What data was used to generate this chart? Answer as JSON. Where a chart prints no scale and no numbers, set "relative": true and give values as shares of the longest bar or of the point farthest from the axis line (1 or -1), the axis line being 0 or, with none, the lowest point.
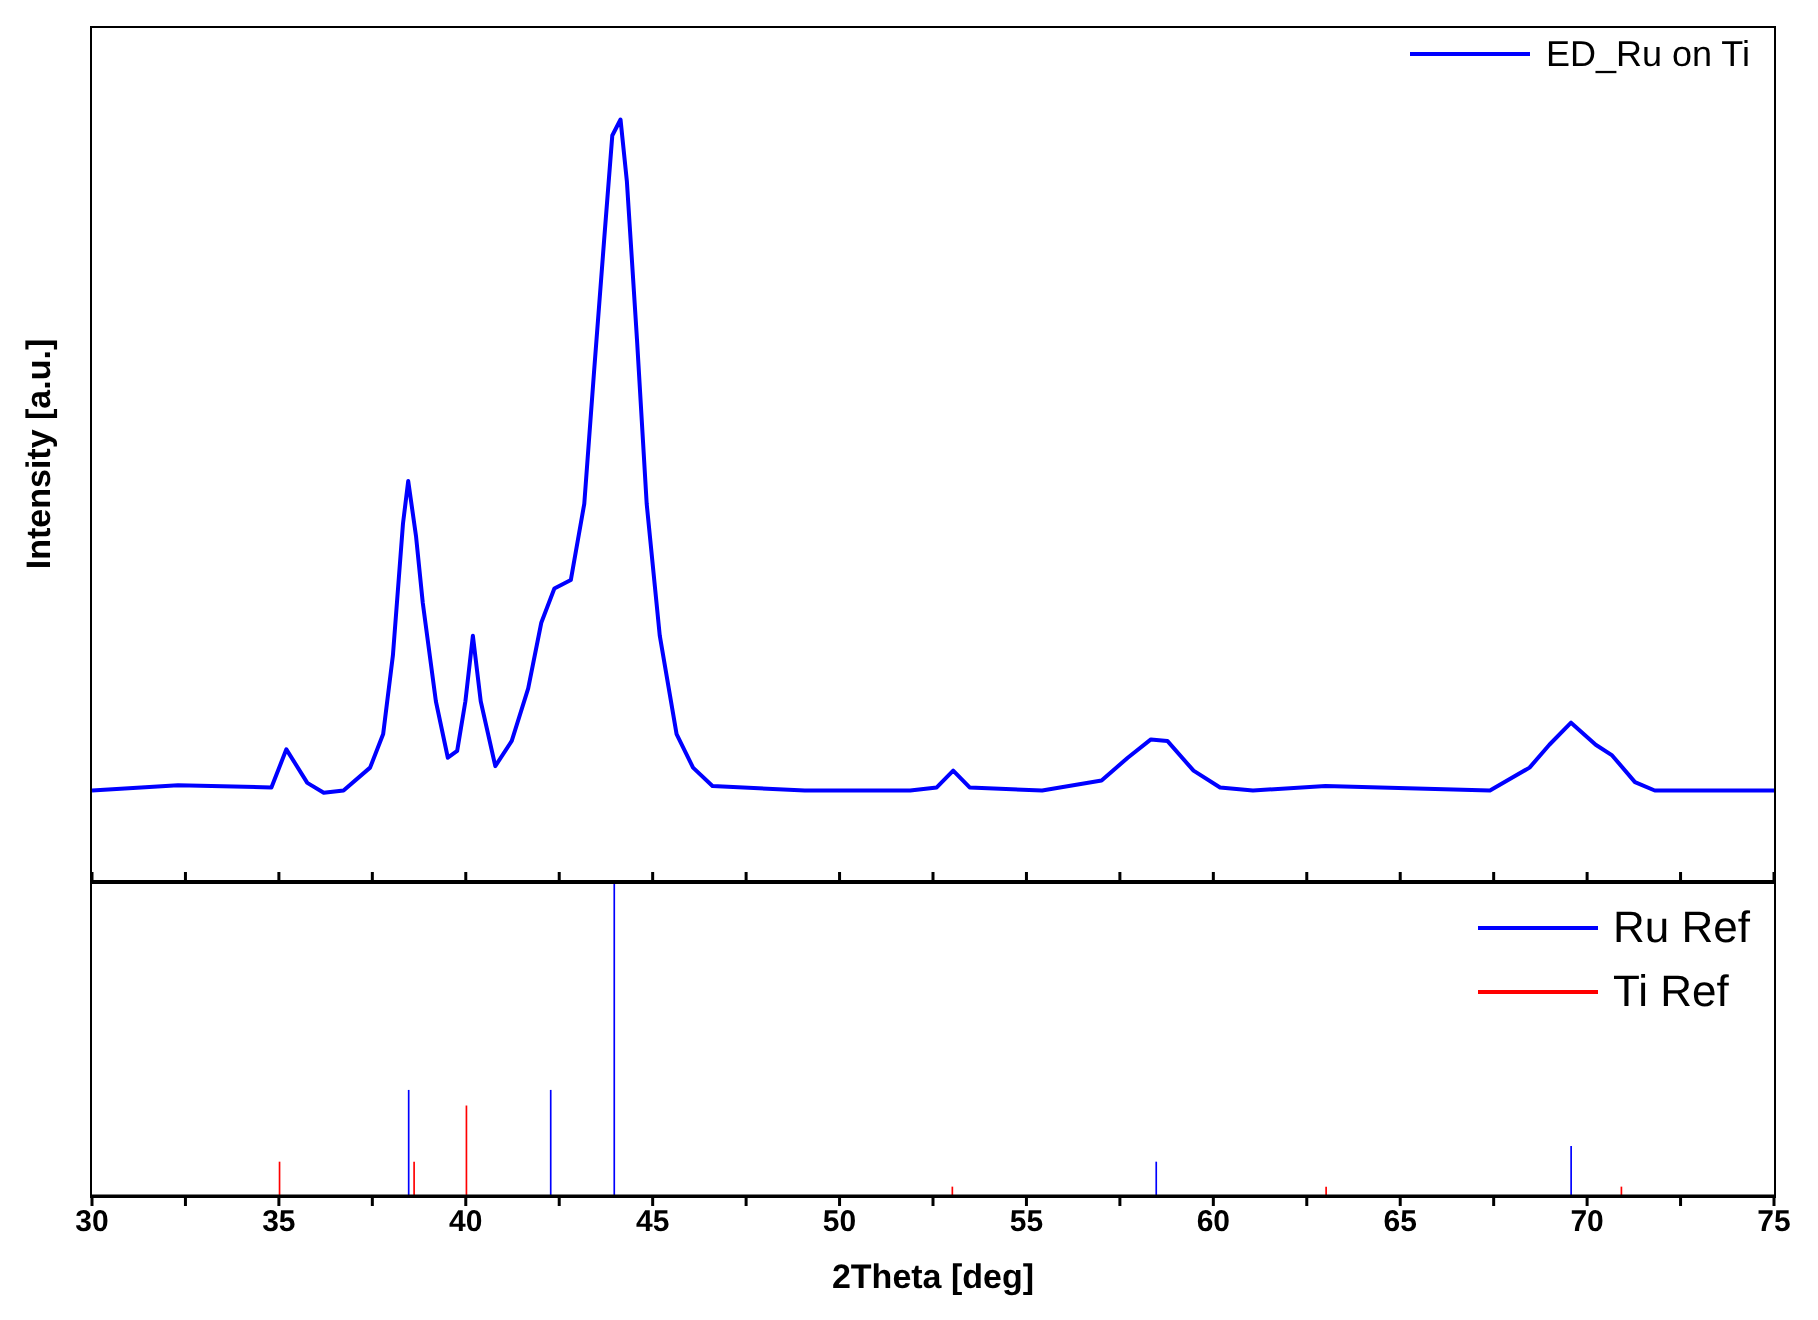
{
  "chart_data": [
    {
      "type": "line",
      "relative": true,
      "ylabel": "Intensity [a.u.]",
      "xlim": [
        30,
        75
      ],
      "xticks": [
        30,
        {
          "value": 32.5,
          "label": null
        },
        35,
        {
          "value": 37.5,
          "label": null
        },
        40,
        {
          "value": 42.5,
          "label": null
        },
        45,
        {
          "value": 47.5,
          "label": null
        },
        50,
        {
          "value": 52.5,
          "label": null
        },
        55,
        {
          "value": 57.5,
          "label": null
        },
        60,
        {
          "value": 62.5,
          "label": null
        },
        65,
        {
          "value": 67.5,
          "label": null
        },
        70,
        {
          "value": 72.5,
          "label": null
        },
        75
      ],
      "tick_labels": false,
      "legend": "top right",
      "series": [
        {
          "name": "ED_Ru on Ti",
          "color": "#0000ff",
          "x": [
            30,
            32.3,
            34.8,
            35.2,
            35.76,
            36.2,
            36.73,
            37.44,
            37.79,
            38.05,
            38.32,
            38.46,
            38.67,
            38.85,
            39.2,
            39.52,
            39.77,
            39.99,
            40.19,
            40.4,
            40.79,
            41.23,
            41.67,
            42.02,
            42.37,
            42.81,
            43.17,
            43.43,
            43.7,
            43.92,
            44.14,
            44.31,
            44.58,
            44.84,
            45.19,
            45.64,
            46.08,
            46.6,
            49.07,
            51.89,
            52.6,
            53.04,
            53.48,
            55.42,
            57.01,
            57.71,
            58.33,
            58.77,
            59.47,
            60.18,
            61.06,
            63.0,
            67.4,
            68.46,
            68.99,
            69.57,
            70.23,
            70.67,
            71.28,
            71.81,
            75
          ],
          "values": [
            0.12,
            0.127,
            0.124,
            0.174,
            0.13,
            0.117,
            0.12,
            0.15,
            0.194,
            0.297,
            0.47,
            0.526,
            0.453,
            0.366,
            0.237,
            0.163,
            0.172,
            0.237,
            0.323,
            0.237,
            0.152,
            0.185,
            0.254,
            0.34,
            0.385,
            0.396,
            0.496,
            0.668,
            0.841,
            0.979,
            1,
            0.919,
            0.712,
            0.496,
            0.323,
            0.194,
            0.15,
            0.126,
            0.12,
            0.12,
            0.124,
            0.146,
            0.124,
            0.12,
            0.133,
            0.163,
            0.187,
            0.185,
            0.146,
            0.124,
            0.12,
            0.126,
            0.12,
            0.15,
            0.18,
            0.209,
            0.18,
            0.166,
            0.131,
            0.12,
            0.12
          ]
        }
      ]
    },
    {
      "type": "bar",
      "relative": true,
      "xlabel": "2Theta [deg]",
      "xlim": [
        30,
        75
      ],
      "xticks": [
        30,
        {
          "value": 32.5,
          "label": null
        },
        35,
        {
          "value": 37.5,
          "label": null
        },
        40,
        {
          "value": 42.5,
          "label": null
        },
        45,
        {
          "value": 47.5,
          "label": null
        },
        50,
        {
          "value": 52.5,
          "label": null
        },
        55,
        {
          "value": 57.5,
          "label": null
        },
        60,
        {
          "value": 62.5,
          "label": null
        },
        65,
        {
          "value": 67.5,
          "label": null
        },
        70,
        {
          "value": 72.5,
          "label": null
        },
        75
      ],
      "tick_labels": "x",
      "legend": "top right",
      "series": [
        {
          "name": "Ru Ref",
          "color": "#0000ff",
          "x": [
            38.5,
            42.3,
            44.0,
            58.5,
            69.6
          ],
          "values": [
            0.34,
            0.34,
            1,
            0.11,
            0.16
          ]
        },
        {
          "name": "Ti Ref",
          "color": "#ff0000",
          "x": [
            35.0,
            38.6,
            40.0,
            53.0,
            63.0,
            70.9
          ],
          "values": [
            0.11,
            0.11,
            0.29,
            0.03,
            0.03,
            0.03
          ]
        }
      ]
    }
  ]
}
